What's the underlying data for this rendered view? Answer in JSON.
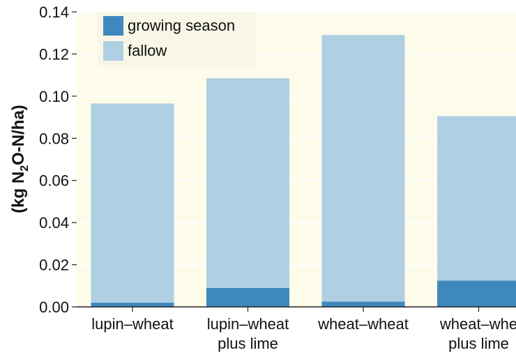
{
  "chart_data": {
    "type": "bar",
    "stacked": true,
    "categories": [
      [
        "lupin–wheat"
      ],
      [
        "lupin–wheat",
        "plus lime"
      ],
      [
        "wheat–wheat"
      ],
      [
        "wheat–whe",
        "plus lime"
      ]
    ],
    "series": [
      {
        "name": "growing season",
        "color": "#3f88bd",
        "values": [
          0.002,
          0.009,
          0.0025,
          0.0125
        ]
      },
      {
        "name": "fallow",
        "color": "#afd0e3",
        "values": [
          0.0945,
          0.0995,
          0.1265,
          0.078
        ]
      }
    ],
    "ylabel": {
      "prefix": "(kg N",
      "subscript": "2",
      "suffix": "O-N/ha)"
    },
    "ylim": [
      0,
      0.14
    ],
    "yticks": [
      "0.00",
      "0.02",
      "0.04",
      "0.06",
      "0.08",
      "0.10",
      "0.12",
      "0.14"
    ],
    "grid": true,
    "legend_position": "top-left",
    "plot_background": "#fdfbea",
    "grid_color": "#ffffff"
  }
}
